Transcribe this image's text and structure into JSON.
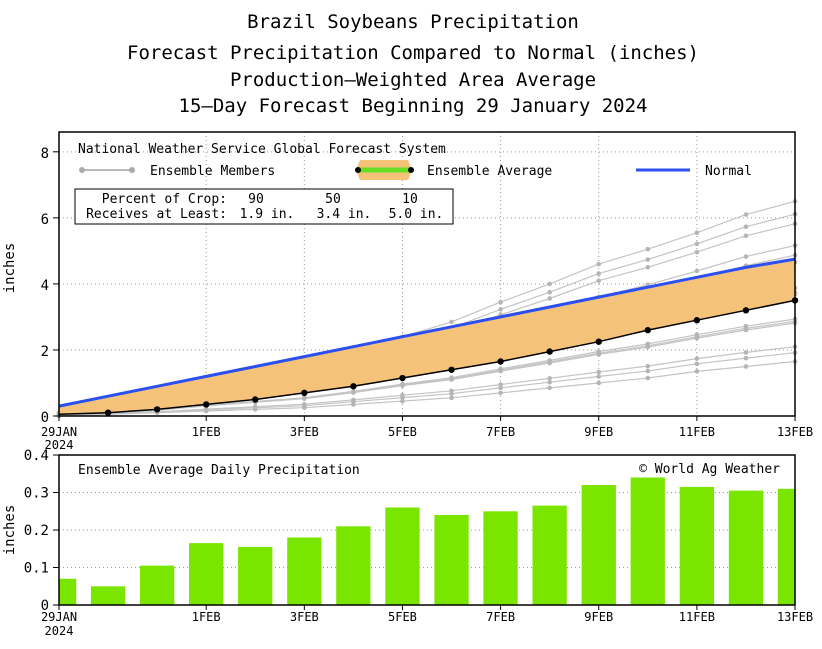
{
  "titles": [
    "Brazil Soybeans Precipitation",
    "Forecast Precipitation Compared to Normal (inches)",
    "Production—Weighted Area Average",
    "15—Day Forecast Beginning 29 January 2024"
  ],
  "colors": {
    "normal": "#2b4ff0",
    "ensemble_fill": "#f5c27a",
    "average_line": "#000000",
    "members": "#c4c4c4",
    "bars": "#7ae600",
    "legend_avg_bar": "#66dd22"
  },
  "chart_data": [
    {
      "type": "line",
      "title": "National Weather Service Global Forecast System",
      "xlabel": "",
      "ylabel": "inches",
      "xlim": [
        0,
        15
      ],
      "ylim": [
        0,
        8.6
      ],
      "yticks": [
        0,
        2,
        4,
        6,
        8
      ],
      "xticks": [
        {
          "x": 0,
          "label": "29JAN",
          "sub": "2024"
        },
        {
          "x": 3,
          "label": "1FEB"
        },
        {
          "x": 5,
          "label": "3FEB"
        },
        {
          "x": 7,
          "label": "5FEB"
        },
        {
          "x": 9,
          "label": "7FEB"
        },
        {
          "x": 11,
          "label": "9FEB"
        },
        {
          "x": 13,
          "label": "11FEB"
        },
        {
          "x": 15,
          "label": "13FEB"
        }
      ],
      "legend": {
        "members": "Ensemble Members",
        "average": "Ensemble Average",
        "normal": "Normal"
      },
      "crop_table": {
        "row1_label": "Percent of Crop:",
        "row1": [
          "90",
          "50",
          "10"
        ],
        "row2_label": "Receives at Least:",
        "row2": [
          "1.9 in.",
          "3.4 in.",
          "5.0 in."
        ]
      },
      "x": [
        0,
        1,
        2,
        3,
        4,
        5,
        6,
        7,
        8,
        9,
        10,
        11,
        12,
        13,
        14,
        15
      ],
      "series": [
        {
          "name": "Normal",
          "values": [
            0.3,
            0.6,
            0.9,
            1.2,
            1.5,
            1.8,
            2.1,
            2.4,
            2.7,
            3.0,
            3.3,
            3.6,
            3.9,
            4.2,
            4.5,
            4.75
          ]
        },
        {
          "name": "Ensemble Average",
          "values": [
            0.05,
            0.1,
            0.2,
            0.35,
            0.5,
            0.7,
            0.9,
            1.15,
            1.4,
            1.65,
            1.95,
            2.25,
            2.6,
            2.9,
            3.2,
            3.5
          ]
        },
        {
          "name": "Ensemble Member (max)",
          "values": [
            0.1,
            0.2,
            0.4,
            0.8,
            1.1,
            1.4,
            1.85,
            2.4,
            2.85,
            3.45,
            4.0,
            4.6,
            5.05,
            5.55,
            6.1,
            6.5
          ]
        },
        {
          "name": "Ensemble Member (min)",
          "values": [
            0.0,
            0.05,
            0.1,
            0.15,
            0.2,
            0.25,
            0.35,
            0.45,
            0.55,
            0.7,
            0.85,
            1.0,
            1.15,
            1.35,
            1.5,
            1.65
          ]
        }
      ]
    },
    {
      "type": "bar",
      "title": "Ensemble Average Daily Precipitation",
      "credit": "© World Ag Weather",
      "xlabel": "",
      "ylabel": "inches",
      "xlim": [
        0,
        15
      ],
      "ylim": [
        0,
        0.4
      ],
      "yticks": [
        0,
        0.1,
        0.2,
        0.3,
        0.4
      ],
      "ytick_labels": [
        "0",
        "0.1",
        "0.2",
        "0.3",
        "0.4"
      ],
      "xticks": [
        {
          "x": 0,
          "label": "29JAN",
          "sub": "2024"
        },
        {
          "x": 3,
          "label": "1FEB"
        },
        {
          "x": 5,
          "label": "3FEB"
        },
        {
          "x": 7,
          "label": "5FEB"
        },
        {
          "x": 9,
          "label": "7FEB"
        },
        {
          "x": 11,
          "label": "9FEB"
        },
        {
          "x": 13,
          "label": "11FEB"
        },
        {
          "x": 15,
          "label": "13FEB"
        }
      ],
      "values": [
        0.07,
        0.05,
        0.105,
        0.165,
        0.155,
        0.18,
        0.21,
        0.26,
        0.24,
        0.25,
        0.265,
        0.32,
        0.34,
        0.315,
        0.305,
        0.31
      ]
    }
  ]
}
